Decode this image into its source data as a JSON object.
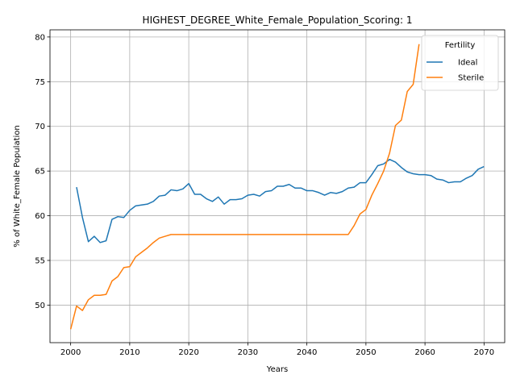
{
  "chart_data": {
    "type": "line",
    "title": "HIGHEST_DEGREE_White_Female_Population_Scoring: 1",
    "xlabel": "Years",
    "ylabel": "% of White_Female Population",
    "xlim": [
      1996.5,
      2073.5
    ],
    "ylim": [
      45.8,
      80.8
    ],
    "xticks": [
      2000,
      2010,
      2020,
      2030,
      2040,
      2050,
      2060,
      2070
    ],
    "yticks": [
      50,
      55,
      60,
      65,
      70,
      75,
      80
    ],
    "grid": true,
    "legend": {
      "title": "Fertility",
      "position": "top-right"
    },
    "series": [
      {
        "name": "Ideal",
        "color": "#1f77b4",
        "x": [
          2001,
          2002,
          2003,
          2004,
          2005,
          2006,
          2007,
          2008,
          2009,
          2010,
          2011,
          2012,
          2013,
          2014,
          2015,
          2016,
          2017,
          2018,
          2019,
          2020,
          2021,
          2022,
          2023,
          2024,
          2025,
          2026,
          2027,
          2028,
          2029,
          2030,
          2031,
          2032,
          2033,
          2034,
          2035,
          2036,
          2037,
          2038,
          2039,
          2040,
          2041,
          2042,
          2043,
          2044,
          2045,
          2046,
          2047,
          2048,
          2049,
          2050,
          2051,
          2052,
          2053,
          2054,
          2055,
          2056,
          2057,
          2058,
          2059,
          2060,
          2061,
          2062,
          2063,
          2064,
          2065,
          2066,
          2067,
          2068,
          2069,
          2070
        ],
        "values": [
          63.2,
          59.8,
          57.1,
          57.7,
          57.0,
          57.2,
          59.6,
          59.9,
          59.8,
          60.6,
          61.1,
          61.2,
          61.3,
          61.6,
          62.2,
          62.3,
          62.9,
          62.8,
          63.0,
          63.6,
          62.4,
          62.4,
          61.9,
          61.6,
          62.1,
          61.3,
          61.8,
          61.8,
          61.9,
          62.3,
          62.4,
          62.2,
          62.7,
          62.8,
          63.3,
          63.3,
          63.5,
          63.1,
          63.1,
          62.8,
          62.8,
          62.6,
          62.3,
          62.6,
          62.5,
          62.7,
          63.1,
          63.2,
          63.7,
          63.7,
          64.6,
          65.6,
          65.8,
          66.3,
          66.0,
          65.4,
          64.9,
          64.7,
          64.6,
          64.6,
          64.5,
          64.1,
          64.0,
          63.7,
          63.8,
          63.8,
          64.2,
          64.5,
          65.2,
          65.5
        ]
      },
      {
        "name": "Sterile",
        "color": "#ff7f0e",
        "x": [
          2000,
          2001,
          2002,
          2003,
          2004,
          2005,
          2006,
          2007,
          2008,
          2009,
          2010,
          2011,
          2012,
          2013,
          2014,
          2015,
          2016,
          2017,
          2018,
          2019,
          2020,
          2021,
          2022,
          2023,
          2024,
          2025,
          2026,
          2027,
          2028,
          2029,
          2030,
          2031,
          2032,
          2033,
          2034,
          2035,
          2036,
          2037,
          2038,
          2039,
          2040,
          2041,
          2042,
          2043,
          2044,
          2045,
          2046,
          2047,
          2048,
          2049,
          2050,
          2051,
          2052,
          2053,
          2054,
          2055,
          2056,
          2057,
          2058,
          2059
        ],
        "values": [
          47.3,
          49.9,
          49.4,
          50.6,
          51.1,
          51.1,
          51.2,
          52.7,
          53.2,
          54.2,
          54.3,
          55.4,
          55.9,
          56.4,
          57.0,
          57.5,
          57.7,
          57.9,
          57.9,
          57.9,
          57.9,
          57.9,
          57.9,
          57.9,
          57.9,
          57.9,
          57.9,
          57.9,
          57.9,
          57.9,
          57.9,
          57.9,
          57.9,
          57.9,
          57.9,
          57.9,
          57.9,
          57.9,
          57.9,
          57.9,
          57.9,
          57.9,
          57.9,
          57.9,
          57.9,
          57.9,
          57.9,
          57.9,
          58.9,
          60.2,
          60.7,
          62.3,
          63.6,
          65.0,
          67.0,
          70.1,
          70.7,
          73.9,
          74.7,
          79.2
        ]
      }
    ]
  }
}
